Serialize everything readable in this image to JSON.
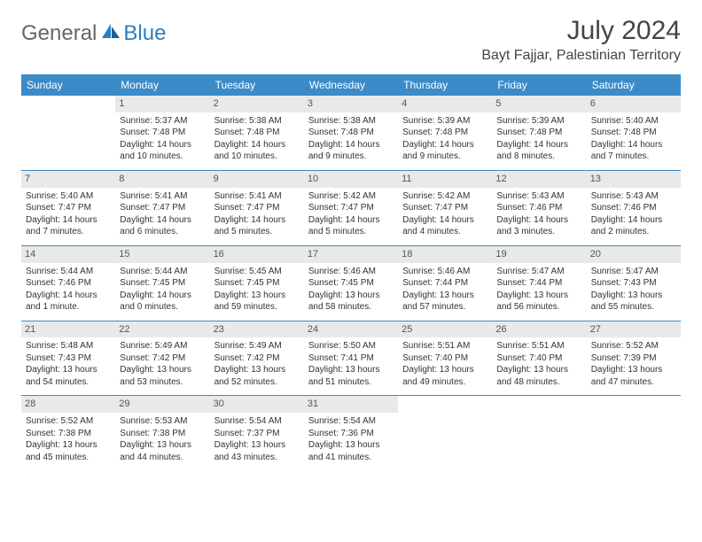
{
  "logo": {
    "general": "General",
    "blue": "Blue"
  },
  "title": "July 2024",
  "location": "Bayt Fajjar, Palestinian Territory",
  "day_headers": [
    "Sunday",
    "Monday",
    "Tuesday",
    "Wednesday",
    "Thursday",
    "Friday",
    "Saturday"
  ],
  "colors": {
    "header_bg": "#3b8bc8",
    "header_text": "#ffffff",
    "daynum_bg": "#e9e9e9",
    "border": "#3b8bc8",
    "logo_blue": "#2a7ec2"
  },
  "weeks": [
    [
      {
        "day": "",
        "sunrise": "",
        "sunset": "",
        "daylight": ""
      },
      {
        "day": "1",
        "sunrise": "Sunrise: 5:37 AM",
        "sunset": "Sunset: 7:48 PM",
        "daylight": "Daylight: 14 hours and 10 minutes."
      },
      {
        "day": "2",
        "sunrise": "Sunrise: 5:38 AM",
        "sunset": "Sunset: 7:48 PM",
        "daylight": "Daylight: 14 hours and 10 minutes."
      },
      {
        "day": "3",
        "sunrise": "Sunrise: 5:38 AM",
        "sunset": "Sunset: 7:48 PM",
        "daylight": "Daylight: 14 hours and 9 minutes."
      },
      {
        "day": "4",
        "sunrise": "Sunrise: 5:39 AM",
        "sunset": "Sunset: 7:48 PM",
        "daylight": "Daylight: 14 hours and 9 minutes."
      },
      {
        "day": "5",
        "sunrise": "Sunrise: 5:39 AM",
        "sunset": "Sunset: 7:48 PM",
        "daylight": "Daylight: 14 hours and 8 minutes."
      },
      {
        "day": "6",
        "sunrise": "Sunrise: 5:40 AM",
        "sunset": "Sunset: 7:48 PM",
        "daylight": "Daylight: 14 hours and 7 minutes."
      }
    ],
    [
      {
        "day": "7",
        "sunrise": "Sunrise: 5:40 AM",
        "sunset": "Sunset: 7:47 PM",
        "daylight": "Daylight: 14 hours and 7 minutes."
      },
      {
        "day": "8",
        "sunrise": "Sunrise: 5:41 AM",
        "sunset": "Sunset: 7:47 PM",
        "daylight": "Daylight: 14 hours and 6 minutes."
      },
      {
        "day": "9",
        "sunrise": "Sunrise: 5:41 AM",
        "sunset": "Sunset: 7:47 PM",
        "daylight": "Daylight: 14 hours and 5 minutes."
      },
      {
        "day": "10",
        "sunrise": "Sunrise: 5:42 AM",
        "sunset": "Sunset: 7:47 PM",
        "daylight": "Daylight: 14 hours and 5 minutes."
      },
      {
        "day": "11",
        "sunrise": "Sunrise: 5:42 AM",
        "sunset": "Sunset: 7:47 PM",
        "daylight": "Daylight: 14 hours and 4 minutes."
      },
      {
        "day": "12",
        "sunrise": "Sunrise: 5:43 AM",
        "sunset": "Sunset: 7:46 PM",
        "daylight": "Daylight: 14 hours and 3 minutes."
      },
      {
        "day": "13",
        "sunrise": "Sunrise: 5:43 AM",
        "sunset": "Sunset: 7:46 PM",
        "daylight": "Daylight: 14 hours and 2 minutes."
      }
    ],
    [
      {
        "day": "14",
        "sunrise": "Sunrise: 5:44 AM",
        "sunset": "Sunset: 7:46 PM",
        "daylight": "Daylight: 14 hours and 1 minute."
      },
      {
        "day": "15",
        "sunrise": "Sunrise: 5:44 AM",
        "sunset": "Sunset: 7:45 PM",
        "daylight": "Daylight: 14 hours and 0 minutes."
      },
      {
        "day": "16",
        "sunrise": "Sunrise: 5:45 AM",
        "sunset": "Sunset: 7:45 PM",
        "daylight": "Daylight: 13 hours and 59 minutes."
      },
      {
        "day": "17",
        "sunrise": "Sunrise: 5:46 AM",
        "sunset": "Sunset: 7:45 PM",
        "daylight": "Daylight: 13 hours and 58 minutes."
      },
      {
        "day": "18",
        "sunrise": "Sunrise: 5:46 AM",
        "sunset": "Sunset: 7:44 PM",
        "daylight": "Daylight: 13 hours and 57 minutes."
      },
      {
        "day": "19",
        "sunrise": "Sunrise: 5:47 AM",
        "sunset": "Sunset: 7:44 PM",
        "daylight": "Daylight: 13 hours and 56 minutes."
      },
      {
        "day": "20",
        "sunrise": "Sunrise: 5:47 AM",
        "sunset": "Sunset: 7:43 PM",
        "daylight": "Daylight: 13 hours and 55 minutes."
      }
    ],
    [
      {
        "day": "21",
        "sunrise": "Sunrise: 5:48 AM",
        "sunset": "Sunset: 7:43 PM",
        "daylight": "Daylight: 13 hours and 54 minutes."
      },
      {
        "day": "22",
        "sunrise": "Sunrise: 5:49 AM",
        "sunset": "Sunset: 7:42 PM",
        "daylight": "Daylight: 13 hours and 53 minutes."
      },
      {
        "day": "23",
        "sunrise": "Sunrise: 5:49 AM",
        "sunset": "Sunset: 7:42 PM",
        "daylight": "Daylight: 13 hours and 52 minutes."
      },
      {
        "day": "24",
        "sunrise": "Sunrise: 5:50 AM",
        "sunset": "Sunset: 7:41 PM",
        "daylight": "Daylight: 13 hours and 51 minutes."
      },
      {
        "day": "25",
        "sunrise": "Sunrise: 5:51 AM",
        "sunset": "Sunset: 7:40 PM",
        "daylight": "Daylight: 13 hours and 49 minutes."
      },
      {
        "day": "26",
        "sunrise": "Sunrise: 5:51 AM",
        "sunset": "Sunset: 7:40 PM",
        "daylight": "Daylight: 13 hours and 48 minutes."
      },
      {
        "day": "27",
        "sunrise": "Sunrise: 5:52 AM",
        "sunset": "Sunset: 7:39 PM",
        "daylight": "Daylight: 13 hours and 47 minutes."
      }
    ],
    [
      {
        "day": "28",
        "sunrise": "Sunrise: 5:52 AM",
        "sunset": "Sunset: 7:38 PM",
        "daylight": "Daylight: 13 hours and 45 minutes."
      },
      {
        "day": "29",
        "sunrise": "Sunrise: 5:53 AM",
        "sunset": "Sunset: 7:38 PM",
        "daylight": "Daylight: 13 hours and 44 minutes."
      },
      {
        "day": "30",
        "sunrise": "Sunrise: 5:54 AM",
        "sunset": "Sunset: 7:37 PM",
        "daylight": "Daylight: 13 hours and 43 minutes."
      },
      {
        "day": "31",
        "sunrise": "Sunrise: 5:54 AM",
        "sunset": "Sunset: 7:36 PM",
        "daylight": "Daylight: 13 hours and 41 minutes."
      },
      {
        "day": "",
        "sunrise": "",
        "sunset": "",
        "daylight": ""
      },
      {
        "day": "",
        "sunrise": "",
        "sunset": "",
        "daylight": ""
      },
      {
        "day": "",
        "sunrise": "",
        "sunset": "",
        "daylight": ""
      }
    ]
  ]
}
